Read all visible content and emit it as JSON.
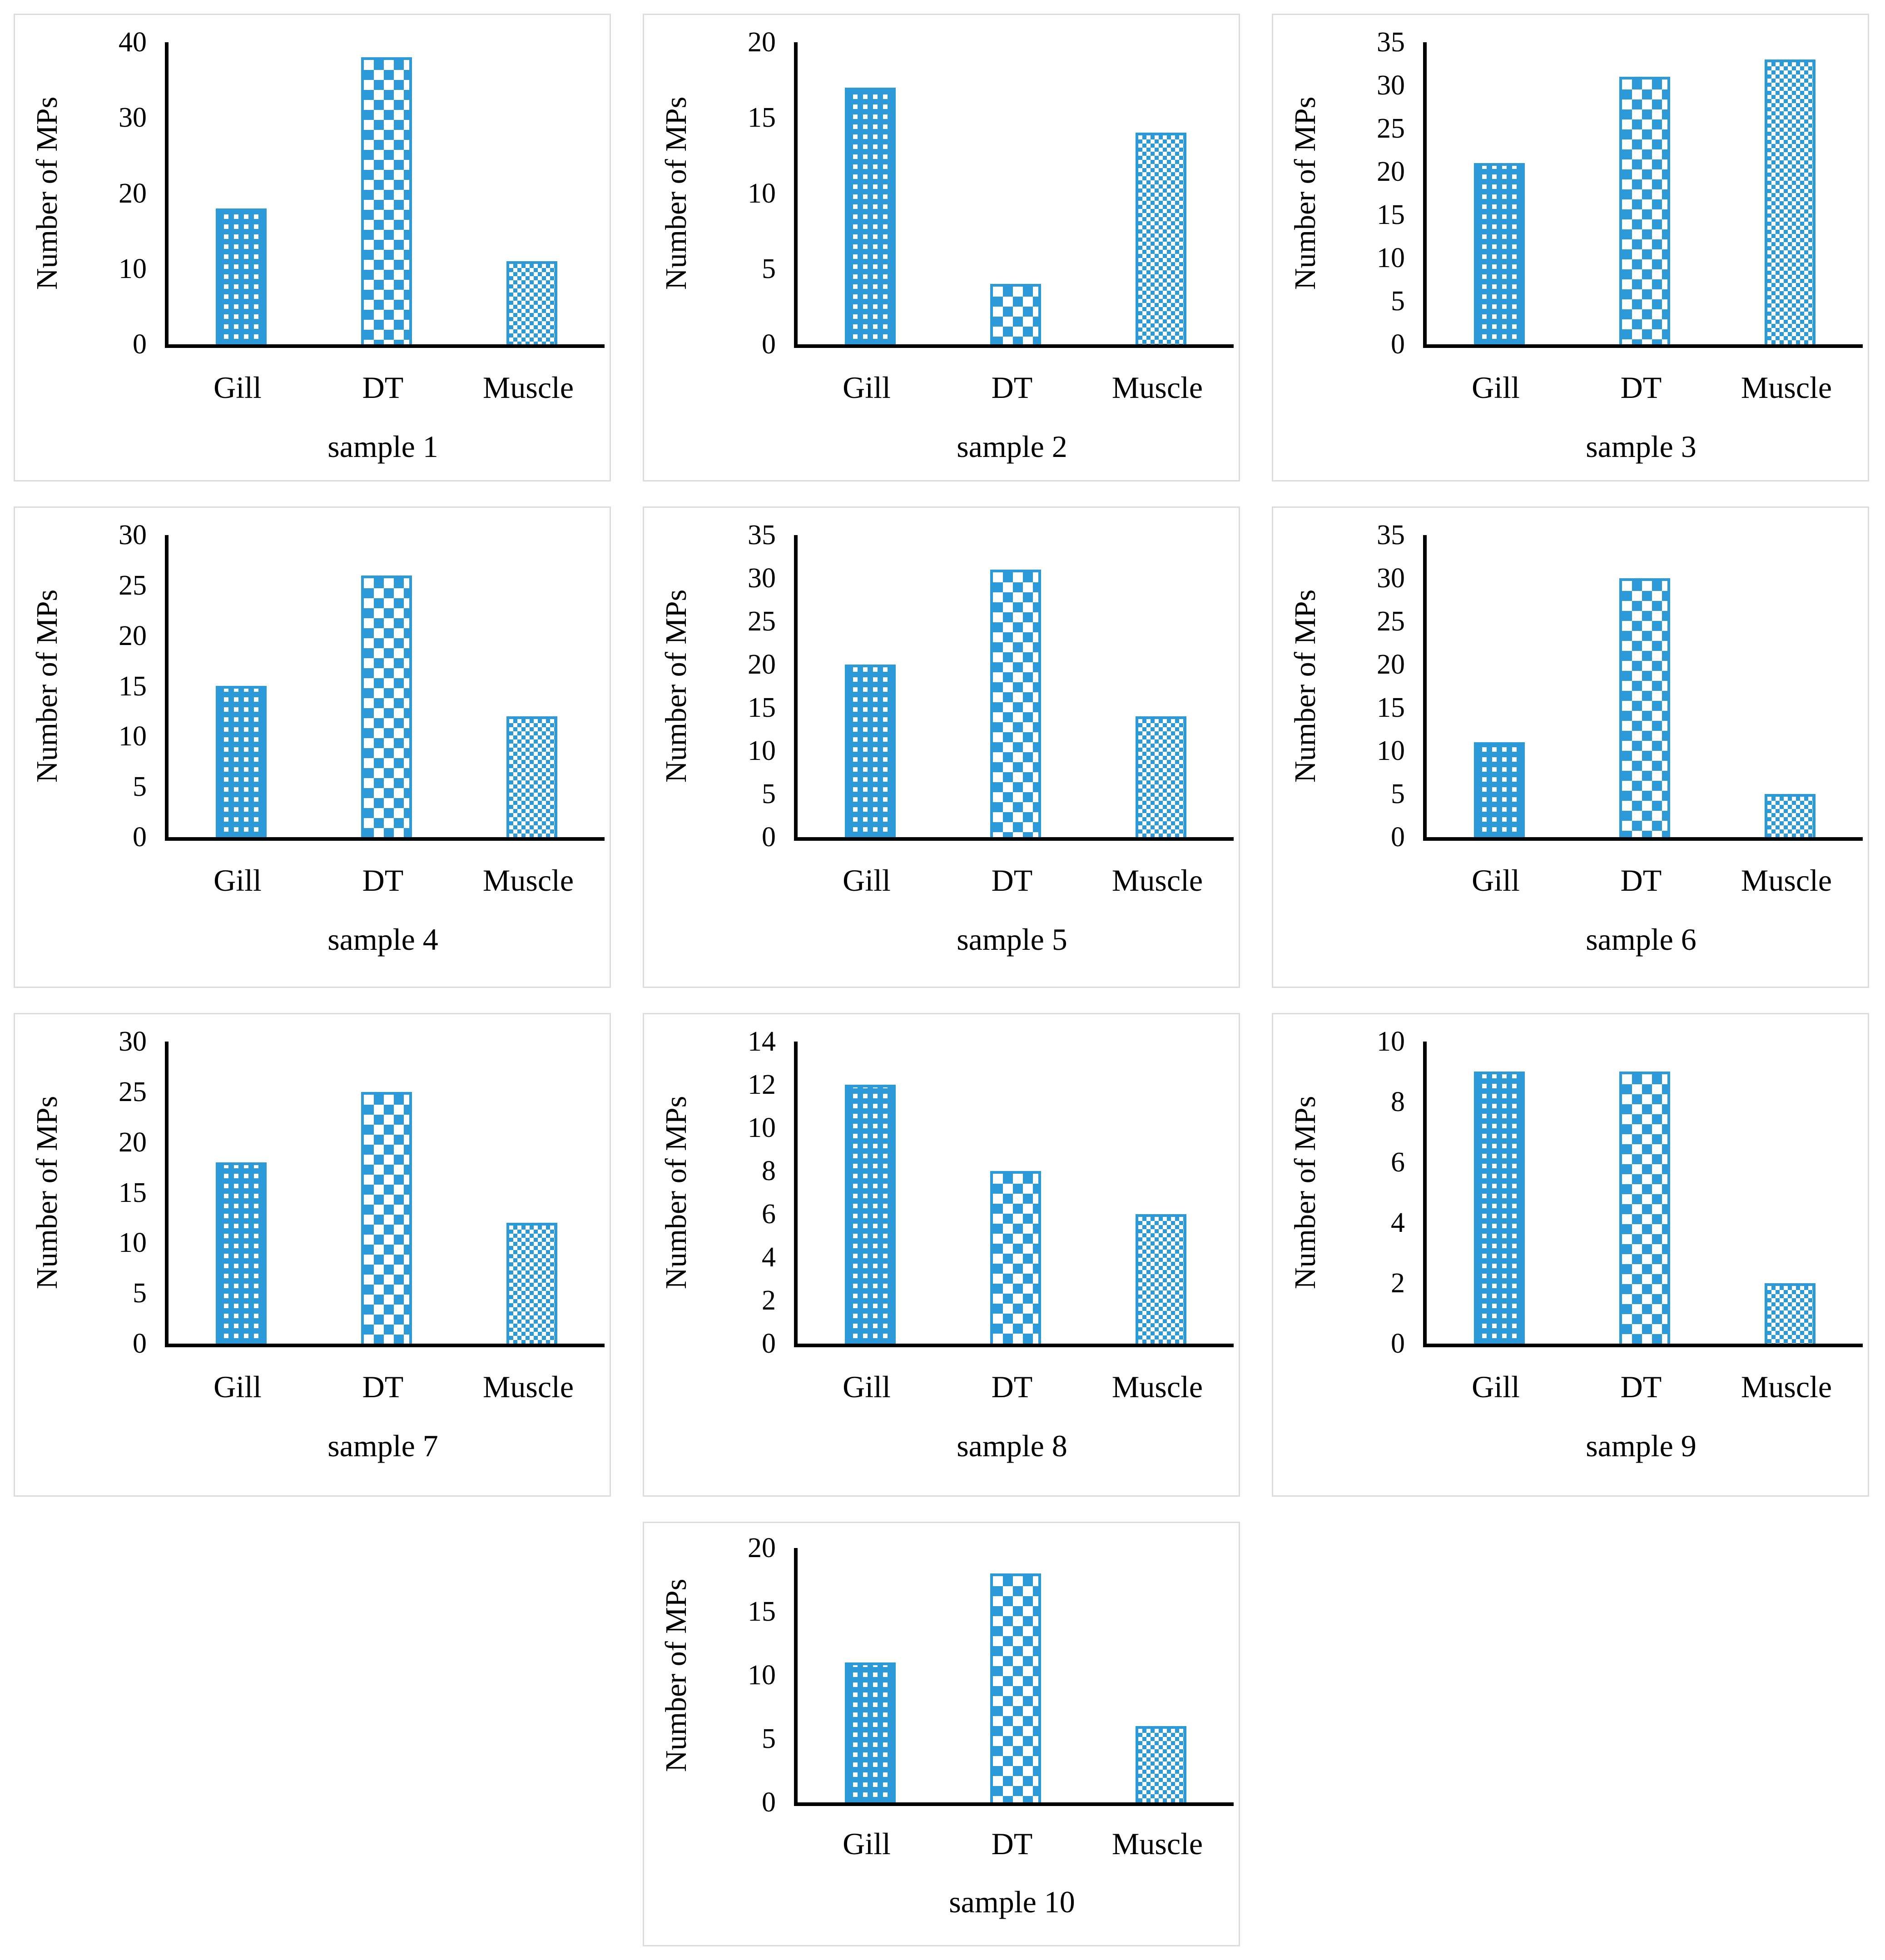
{
  "style": {
    "accent": "#2C9AD9",
    "axis_color": "#000000",
    "panel_border": "#DCDCDC",
    "text_color": "#000000",
    "background": "#FFFFFF"
  },
  "figure": {
    "y_axis_label": "Number of MPs",
    "categories": [
      "Gill",
      "DT",
      "Muscle"
    ],
    "bar_patterns": {
      "Gill": "dotted-grid",
      "DT": "diamond-checker",
      "Muscle": "fine-checker"
    }
  },
  "chart_data": [
    {
      "type": "bar",
      "title": "sample 1",
      "xlabel": "sample 1",
      "ylabel": "Number of MPs",
      "categories": [
        "Gill",
        "DT",
        "Muscle"
      ],
      "values": [
        18,
        38,
        11
      ],
      "ylim": [
        0,
        40
      ],
      "yticks": [
        0,
        10,
        20,
        30,
        40
      ],
      "grid": false,
      "legend": false
    },
    {
      "type": "bar",
      "title": "sample 2",
      "xlabel": "sample 2",
      "ylabel": "Number of MPs",
      "categories": [
        "Gill",
        "DT",
        "Muscle"
      ],
      "values": [
        17,
        4,
        14
      ],
      "ylim": [
        0,
        20
      ],
      "yticks": [
        0,
        5,
        10,
        15,
        20
      ],
      "grid": false,
      "legend": false
    },
    {
      "type": "bar",
      "title": "sample 3",
      "xlabel": "sample 3",
      "ylabel": "Number of MPs",
      "categories": [
        "Gill",
        "DT",
        "Muscle"
      ],
      "values": [
        21,
        31,
        33
      ],
      "ylim": [
        0,
        35
      ],
      "yticks": [
        0,
        5,
        10,
        15,
        20,
        25,
        30,
        35
      ],
      "grid": false,
      "legend": false
    },
    {
      "type": "bar",
      "title": "sample 4",
      "xlabel": "sample 4",
      "ylabel": "Number of MPs",
      "categories": [
        "Gill",
        "DT",
        "Muscle"
      ],
      "values": [
        15,
        26,
        12
      ],
      "ylim": [
        0,
        30
      ],
      "yticks": [
        0,
        5,
        10,
        15,
        20,
        25,
        30
      ],
      "grid": false,
      "legend": false
    },
    {
      "type": "bar",
      "title": "sample 5",
      "xlabel": "sample 5",
      "ylabel": "Number of MPs",
      "categories": [
        "Gill",
        "DT",
        "Muscle"
      ],
      "values": [
        20,
        31,
        14
      ],
      "ylim": [
        0,
        35
      ],
      "yticks": [
        0,
        5,
        10,
        15,
        20,
        25,
        30,
        35
      ],
      "grid": false,
      "legend": false
    },
    {
      "type": "bar",
      "title": "sample 6",
      "xlabel": "sample 6",
      "ylabel": "Number of MPs",
      "categories": [
        "Gill",
        "DT",
        "Muscle"
      ],
      "values": [
        11,
        30,
        5
      ],
      "ylim": [
        0,
        35
      ],
      "yticks": [
        0,
        5,
        10,
        15,
        20,
        25,
        30,
        35
      ],
      "grid": false,
      "legend": false
    },
    {
      "type": "bar",
      "title": "sample 7",
      "xlabel": "sample 7",
      "ylabel": "Number of MPs",
      "categories": [
        "Gill",
        "DT",
        "Muscle"
      ],
      "values": [
        18,
        25,
        12
      ],
      "ylim": [
        0,
        30
      ],
      "yticks": [
        0,
        5,
        10,
        15,
        20,
        25,
        30
      ],
      "grid": false,
      "legend": false
    },
    {
      "type": "bar",
      "title": "sample 8",
      "xlabel": "sample 8",
      "ylabel": "Number of MPs",
      "categories": [
        "Gill",
        "DT",
        "Muscle"
      ],
      "values": [
        12,
        8,
        6
      ],
      "ylim": [
        0,
        14
      ],
      "yticks": [
        0,
        2,
        4,
        6,
        8,
        10,
        12,
        14
      ],
      "grid": false,
      "legend": false
    },
    {
      "type": "bar",
      "title": "sample 9",
      "xlabel": "sample 9",
      "ylabel": "Number of MPs",
      "categories": [
        "Gill",
        "DT",
        "Muscle"
      ],
      "values": [
        9,
        9,
        2
      ],
      "ylim": [
        0,
        10
      ],
      "yticks": [
        0,
        2,
        4,
        6,
        8,
        10
      ],
      "grid": false,
      "legend": false
    },
    {
      "type": "bar",
      "title": "sample 10",
      "xlabel": "sample 10",
      "ylabel": "Number of MPs",
      "categories": [
        "Gill",
        "DT",
        "Muscle"
      ],
      "values": [
        11,
        18,
        6
      ],
      "ylim": [
        0,
        20
      ],
      "yticks": [
        0,
        5,
        10,
        15,
        20
      ],
      "grid": false,
      "legend": false
    }
  ]
}
